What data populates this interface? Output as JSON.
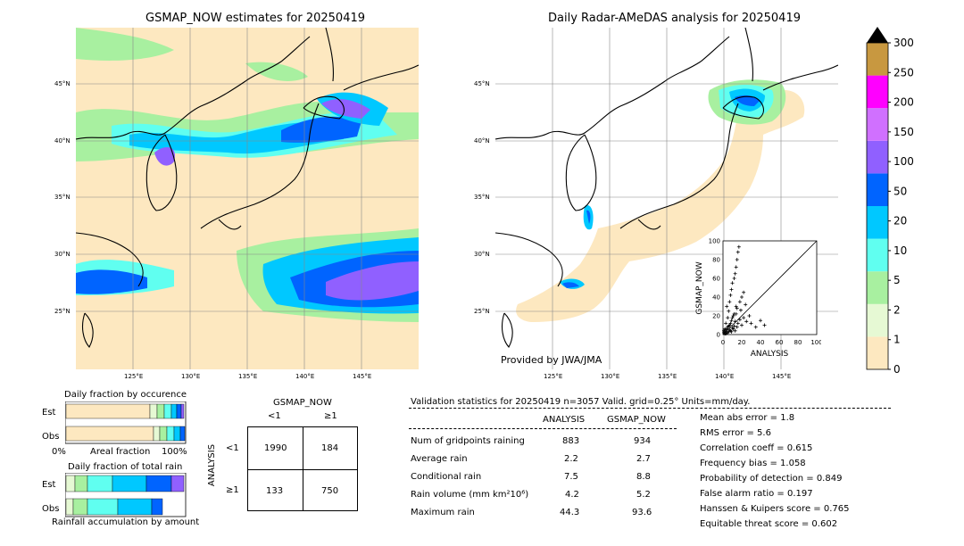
{
  "left_map": {
    "title": "GSMAP_NOW estimates for 20250419",
    "lat_labels": [
      "45°N",
      "40°N",
      "35°N",
      "30°N",
      "25°N"
    ],
    "lon_labels": [
      "125°E",
      "130°E",
      "135°E",
      "140°E",
      "145°E"
    ]
  },
  "right_map": {
    "title": "Daily Radar-AMeDAS analysis for 20250419",
    "lat_labels": [
      "45°N",
      "40°N",
      "35°N",
      "30°N",
      "25°N"
    ],
    "lon_labels": [
      "125°E",
      "130°E",
      "135°E",
      "140°E",
      "145°E"
    ],
    "credit": "Provided by JWA/JMA"
  },
  "colorbar": {
    "labels": [
      "0",
      "1",
      "2",
      "5",
      "10",
      "20",
      "50",
      "100",
      "150",
      "200",
      "250",
      "300"
    ],
    "colors": [
      "#fde8c0",
      "#e6f9d4",
      "#a8f0a0",
      "#60fff0",
      "#00c8ff",
      "#0064ff",
      "#9060ff",
      "#d070ff",
      "#ff00ff",
      "#c89840"
    ]
  },
  "occurrence": {
    "title": "Daily fraction by occurence",
    "row_labels": [
      "Est",
      "Obs"
    ],
    "axis_left": "0%",
    "axis_mid": "Areal fraction",
    "axis_right": "100%"
  },
  "total_rain": {
    "title": "Daily fraction of total rain",
    "row_labels": [
      "Est",
      "Obs"
    ],
    "footer": "Rainfall accumulation by amount"
  },
  "contingency": {
    "top_label": "GSMAP_NOW",
    "col_labels": [
      "<1",
      "≥1"
    ],
    "side_label": "ANALYSIS",
    "row_labels": [
      "<1",
      "≥1"
    ],
    "cells": [
      [
        "1990",
        "184"
      ],
      [
        "133",
        "750"
      ]
    ]
  },
  "stats": {
    "header": "Validation statistics for 20250419  n=3057 Valid. grid=0.25° Units=mm/day.",
    "col_analysis": "ANALYSIS",
    "col_gsmap": "GSMAP_NOW",
    "rows": [
      {
        "label": "Num of gridpoints raining",
        "analysis": "883",
        "gsmap": "934"
      },
      {
        "label": "Average rain",
        "analysis": "2.2",
        "gsmap": "2.7"
      },
      {
        "label": "Conditional rain",
        "analysis": "7.5",
        "gsmap": "8.8"
      },
      {
        "label": "Rain volume (mm km²10⁶)",
        "analysis": "4.2",
        "gsmap": "5.2"
      },
      {
        "label": "Maximum rain",
        "analysis": "44.3",
        "gsmap": "93.6"
      }
    ],
    "scores": [
      "Mean abs error =    1.8",
      "RMS error =    5.6",
      "Correlation coeff =  0.615",
      "Frequency bias =  1.058",
      "Probability of detection =  0.849",
      "False alarm ratio =  0.197",
      "Hanssen & Kuipers score =  0.765",
      "Equitable threat score =  0.602"
    ]
  },
  "chart_data": {
    "type": "scatter",
    "xlabel": "ANALYSIS",
    "ylabel": "GSMAP_NOW",
    "xlim": [
      0,
      100
    ],
    "ylim": [
      0,
      100
    ],
    "ticks": [
      "0",
      "20",
      "40",
      "60",
      "80",
      "100"
    ],
    "points": [
      [
        1,
        2
      ],
      [
        2,
        1
      ],
      [
        3,
        5
      ],
      [
        4,
        2
      ],
      [
        5,
        8
      ],
      [
        6,
        3
      ],
      [
        2,
        6
      ],
      [
        7,
        10
      ],
      [
        8,
        4
      ],
      [
        3,
        12
      ],
      [
        9,
        15
      ],
      [
        10,
        7
      ],
      [
        11,
        20
      ],
      [
        12,
        9
      ],
      [
        5,
        18
      ],
      [
        6,
        25
      ],
      [
        13,
        14
      ],
      [
        14,
        22
      ],
      [
        4,
        30
      ],
      [
        7,
        35
      ],
      [
        8,
        42
      ],
      [
        9,
        48
      ],
      [
        10,
        55
      ],
      [
        15,
        28
      ],
      [
        16,
        12
      ],
      [
        18,
        16
      ],
      [
        20,
        10
      ],
      [
        22,
        18
      ],
      [
        25,
        14
      ],
      [
        28,
        20
      ],
      [
        12,
        60
      ],
      [
        13,
        65
      ],
      [
        14,
        72
      ],
      [
        15,
        80
      ],
      [
        16,
        88
      ],
      [
        17,
        93.6
      ],
      [
        20,
        40
      ],
      [
        22,
        45
      ],
      [
        30,
        12
      ],
      [
        35,
        8
      ],
      [
        40,
        15
      ],
      [
        44.3,
        10
      ],
      [
        2,
        3
      ],
      [
        3,
        1
      ],
      [
        1,
        4
      ],
      [
        4,
        6
      ],
      [
        5,
        2
      ],
      [
        6,
        9
      ],
      [
        7,
        5
      ],
      [
        8,
        12
      ],
      [
        9,
        3
      ],
      [
        10,
        18
      ],
      [
        11,
        6
      ],
      [
        12,
        22
      ],
      [
        13,
        4
      ],
      [
        14,
        30
      ],
      [
        15,
        8
      ],
      [
        18,
        35
      ],
      [
        19,
        26
      ],
      [
        24,
        32
      ]
    ]
  }
}
